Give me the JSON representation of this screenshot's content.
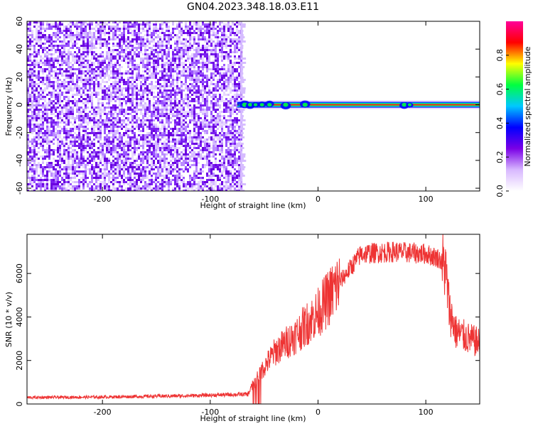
{
  "title": "GN04.2023.348.18.03.E11",
  "chart_data": [
    {
      "type": "heatmap",
      "title": "GN04.2023.348.18.03.E11",
      "xlabel": "Height of straight line (km)",
      "ylabel": "Frequency (Hz)",
      "xlim": [
        -270,
        150
      ],
      "ylim": [
        -62,
        60
      ],
      "xticks": [
        -200,
        -100,
        0,
        100
      ],
      "yticks": [
        -60,
        -40,
        -20,
        0,
        20,
        40,
        60
      ],
      "noise_region_x": [
        -270,
        -72
      ],
      "tone_frequency": 0,
      "tone_start_x": -75,
      "colorbar": {
        "label": "Normalized spectral amplitude",
        "ticks": [
          "0.0",
          "0.2",
          "0.4",
          "0.6",
          "0.8"
        ],
        "range": [
          0,
          1
        ],
        "colors": [
          "#ffffff",
          "#d8b8ff",
          "#7a00e6",
          "#0000ff",
          "#00c8ff",
          "#00ff40",
          "#ffff00",
          "#ff0000",
          "#ff0099"
        ]
      }
    },
    {
      "type": "line",
      "xlabel": "Height of straight line (km)",
      "ylabel": "SNR (10 * v/v)",
      "xlim": [
        -270,
        150
      ],
      "ylim": [
        0,
        7800
      ],
      "xticks": [
        -200,
        -100,
        0,
        100
      ],
      "yticks": [
        0,
        2000,
        4000,
        6000
      ],
      "color": "#ee3333",
      "envelope": {
        "x": [
          -270,
          -200,
          -120,
          -65,
          -58,
          -50,
          -40,
          -20,
          0,
          20,
          40,
          70,
          100,
          112,
          118,
          122,
          128,
          140,
          150
        ],
        "y": [
          300,
          320,
          380,
          450,
          1100,
          1700,
          2400,
          3200,
          4200,
          5600,
          6900,
          7000,
          6900,
          6700,
          6300,
          4300,
          3300,
          3000,
          2800
        ]
      }
    }
  ]
}
